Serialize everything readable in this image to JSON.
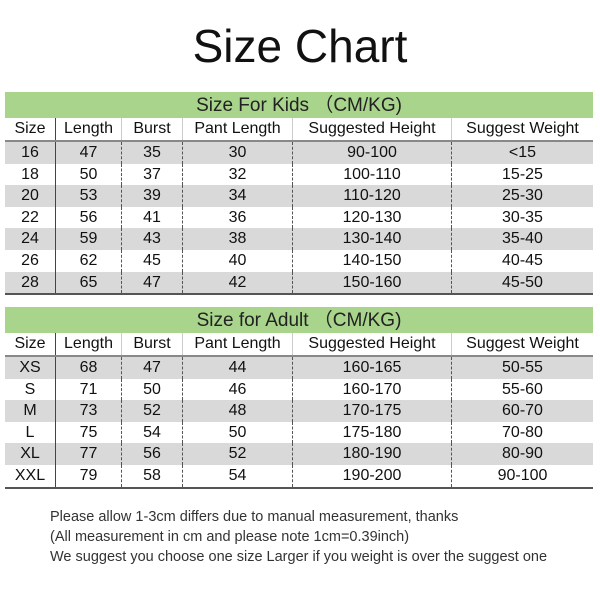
{
  "title": "Size Chart",
  "columns": [
    "Size",
    "Length",
    "Burst",
    "Pant Length",
    "Suggested Height",
    "Suggest Weight"
  ],
  "kids": {
    "heading": "Size For Kids （CM/KG)",
    "rows": [
      [
        "16",
        "47",
        "35",
        "30",
        "90-100",
        "<15"
      ],
      [
        "18",
        "50",
        "37",
        "32",
        "100-110",
        "15-25"
      ],
      [
        "20",
        "53",
        "39",
        "34",
        "110-120",
        "25-30"
      ],
      [
        "22",
        "56",
        "41",
        "36",
        "120-130",
        "30-35"
      ],
      [
        "24",
        "59",
        "43",
        "38",
        "130-140",
        "35-40"
      ],
      [
        "26",
        "62",
        "45",
        "40",
        "140-150",
        "40-45"
      ],
      [
        "28",
        "65",
        "47",
        "42",
        "150-160",
        "45-50"
      ]
    ]
  },
  "adult": {
    "heading": "Size for Adult （CM/KG)",
    "rows": [
      [
        "XS",
        "68",
        "47",
        "44",
        "160-165",
        "50-55"
      ],
      [
        "S",
        "71",
        "50",
        "46",
        "160-170",
        "55-60"
      ],
      [
        "M",
        "73",
        "52",
        "48",
        "170-175",
        "60-70"
      ],
      [
        "L",
        "75",
        "54",
        "50",
        "175-180",
        "70-80"
      ],
      [
        "XL",
        "77",
        "56",
        "52",
        "180-190",
        "80-90"
      ],
      [
        "XXL",
        "79",
        "58",
        "54",
        "190-200",
        "90-100"
      ]
    ]
  },
  "notes": [
    "Please allow 1-3cm differs due to manual measurement, thanks",
    "(All measurement in cm and please note 1cm=0.39inch)",
    "We suggest you choose one size Larger if you weight is over the suggest one"
  ],
  "colors": {
    "band": "#a8d48c",
    "stripe": "#d9d9d9"
  }
}
